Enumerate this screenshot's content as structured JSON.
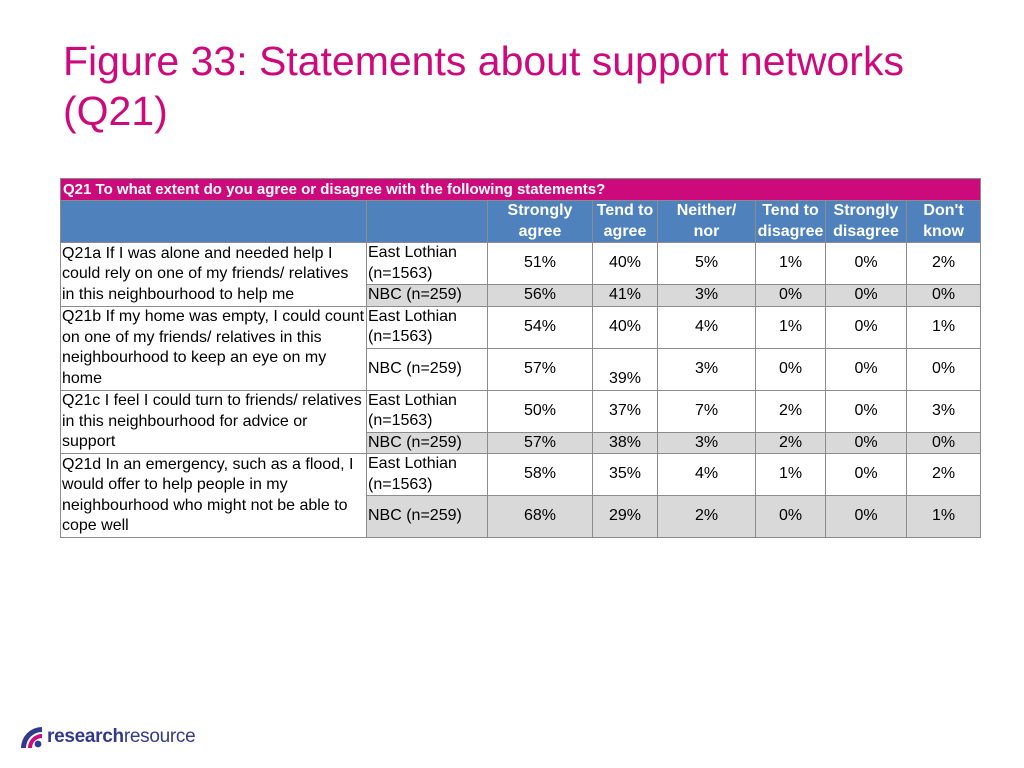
{
  "title": "Figure 33: Statements about support networks (Q21)",
  "question": "Q21 To what extent do you agree or disagree with the following statements?",
  "columns": [
    "Strongly agree",
    "Tend to agree",
    "Neither/ nor",
    "Tend to disagree",
    "Strongly disagree",
    "Don't know"
  ],
  "column_lines": [
    [
      "Strongly",
      "agree"
    ],
    [
      "Tend to",
      "agree"
    ],
    [
      "Neither/",
      "nor"
    ],
    [
      "Tend to",
      "disagree"
    ],
    [
      "Strongly",
      "disagree"
    ],
    [
      "Don't",
      "know"
    ]
  ],
  "rows": [
    {
      "statement": "Q21a If I was alone and needed help I could rely on one of my friends/ relatives in this neighbourhood to help me",
      "groups": [
        {
          "label_lines": [
            "East Lothian",
            "(n=1563)"
          ],
          "values": [
            "51%",
            "40%",
            "5%",
            "1%",
            "0%",
            "2%"
          ]
        },
        {
          "label_lines": [
            "NBC (n=259)"
          ],
          "values": [
            "56%",
            "41%",
            "3%",
            "0%",
            "0%",
            "0%"
          ]
        }
      ]
    },
    {
      "statement": "Q21b If my home was empty, I could count on one of my friends/ relatives in this neighbourhood to keep an eye on my home",
      "groups": [
        {
          "label_lines": [
            "East Lothian",
            "(n=1563)"
          ],
          "values": [
            "54%",
            "40%",
            "4%",
            "1%",
            "0%",
            "1%"
          ]
        },
        {
          "label_lines": [
            "NBC (n=259)"
          ],
          "values": [
            "57%",
            "39%",
            "3%",
            "0%",
            "0%",
            "0%"
          ]
        }
      ]
    },
    {
      "statement": "Q21c I feel I could turn to friends/ relatives in this neighbourhood for advice or support",
      "groups": [
        {
          "label_lines": [
            "East Lothian",
            "(n=1563)"
          ],
          "values": [
            "50%",
            "37%",
            "7%",
            "2%",
            "0%",
            "3%"
          ]
        },
        {
          "label_lines": [
            "NBC (n=259)"
          ],
          "values": [
            "57%",
            "38%",
            "3%",
            "2%",
            "0%",
            "0%"
          ]
        }
      ]
    },
    {
      "statement": "Q21d In an emergency, such as a flood, I would offer to help people in my neighbourhood who might not be able to cope well",
      "groups": [
        {
          "label_lines": [
            "East Lothian",
            "(n=1563)"
          ],
          "values": [
            "58%",
            "35%",
            "4%",
            "1%",
            "0%",
            "2%"
          ]
        },
        {
          "label_lines": [
            "NBC (n=259)"
          ],
          "values": [
            "68%",
            "29%",
            "2%",
            "0%",
            "0%",
            "1%"
          ]
        }
      ]
    }
  ],
  "logo": {
    "bold": "research",
    "light": "resource"
  },
  "colors": {
    "title": "#cc0a7c",
    "question_bar": "#cc0a7c",
    "header": "#4f81bd",
    "shade": "#d9d9d9",
    "logo": "#333a8c"
  }
}
